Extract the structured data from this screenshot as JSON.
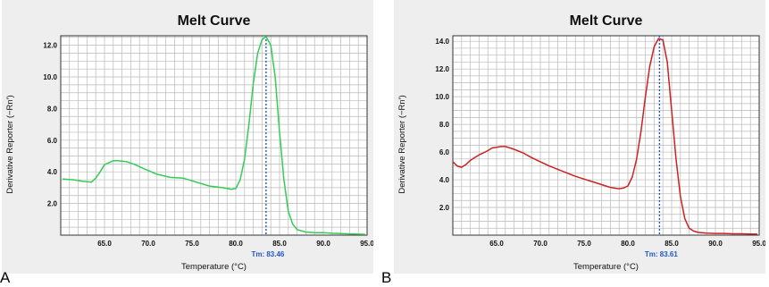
{
  "labels": {
    "a": "A",
    "b": "B"
  },
  "chart_data": [
    {
      "type": "line",
      "title": "Melt Curve",
      "xlabel": "Temperature (°C)",
      "ylabel": "Derivative Reporter (−Rn′)",
      "xlim": [
        60.0,
        95.0
      ],
      "ylim": [
        0.0,
        12.6
      ],
      "xticks": [
        "65.0",
        "70.0",
        "75.0",
        "80.0",
        "85.0",
        "90.0",
        "95.0"
      ],
      "yticks": [
        "2.0",
        "4.0",
        "6.0",
        "8.0",
        "10.0",
        "12.0"
      ],
      "grid": true,
      "tm_label": "Tm: 83.46",
      "tm": 83.46,
      "color": "#33cc55",
      "series": [
        {
          "x": [
            60.2,
            61.5,
            62.5,
            63.5,
            64.0,
            64.5,
            65.0,
            66.0,
            66.5,
            67.5,
            68.5,
            69.5,
            71.0,
            72.5,
            74.0,
            75.5,
            77.0,
            78.5,
            79.5,
            80.0,
            80.5,
            81.0,
            81.5,
            82.0,
            82.5,
            83.0,
            83.46,
            84.0,
            84.5,
            85.0,
            85.5,
            86.0,
            86.5,
            87.0,
            88.0,
            89.0,
            90.0,
            91.0,
            92.0,
            93.0,
            94.0,
            94.8
          ],
          "y": [
            3.55,
            3.5,
            3.4,
            3.35,
            3.6,
            4.0,
            4.45,
            4.7,
            4.7,
            4.65,
            4.45,
            4.2,
            3.85,
            3.65,
            3.6,
            3.35,
            3.1,
            3.0,
            2.9,
            2.95,
            3.5,
            4.8,
            7.0,
            9.6,
            11.5,
            12.35,
            12.55,
            12.0,
            10.0,
            6.5,
            3.5,
            1.5,
            0.7,
            0.35,
            0.2,
            0.15,
            0.15,
            0.12,
            0.1,
            0.08,
            0.06,
            0.05
          ]
        }
      ]
    },
    {
      "type": "line",
      "title": "Melt Curve",
      "xlabel": "Temperature (°C)",
      "ylabel": "Derivative Reporter (−Rn′)",
      "xlim": [
        60.0,
        95.0
      ],
      "ylim": [
        0.0,
        14.4
      ],
      "xticks": [
        "65.0",
        "70.0",
        "75.0",
        "80.0",
        "85.0",
        "90.0",
        "95.0"
      ],
      "yticks": [
        "2.0",
        "4.0",
        "6.0",
        "8.0",
        "10.0",
        "12.0",
        "14.0"
      ],
      "grid": true,
      "tm_label": "Tm: 83.61",
      "tm": 83.61,
      "color": "#cc2222",
      "series": [
        {
          "x": [
            60.0,
            60.5,
            61.0,
            61.5,
            62.0,
            62.5,
            63.0,
            63.5,
            64.0,
            64.5,
            65.0,
            65.5,
            66.0,
            66.5,
            67.0,
            68.0,
            69.0,
            70.0,
            71.0,
            72.0,
            73.0,
            74.0,
            75.0,
            76.0,
            77.0,
            78.0,
            79.0,
            79.5,
            80.0,
            80.5,
            81.0,
            81.5,
            82.0,
            82.5,
            83.0,
            83.5,
            84.0,
            84.5,
            85.0,
            85.5,
            86.0,
            86.5,
            87.0,
            87.5,
            88.0,
            89.0,
            90.0,
            91.0,
            92.0,
            93.0,
            94.0,
            94.8
          ],
          "y": [
            5.3,
            5.0,
            4.9,
            5.1,
            5.4,
            5.6,
            5.8,
            5.95,
            6.1,
            6.3,
            6.35,
            6.4,
            6.4,
            6.3,
            6.2,
            5.95,
            5.6,
            5.3,
            5.0,
            4.75,
            4.5,
            4.25,
            4.05,
            3.85,
            3.65,
            3.45,
            3.35,
            3.4,
            3.55,
            4.2,
            5.5,
            7.5,
            10.0,
            12.2,
            13.6,
            14.2,
            14.1,
            12.5,
            9.0,
            5.5,
            2.8,
            1.2,
            0.5,
            0.3,
            0.2,
            0.15,
            0.12,
            0.12,
            0.1,
            0.1,
            0.08,
            0.07
          ]
        }
      ]
    }
  ]
}
